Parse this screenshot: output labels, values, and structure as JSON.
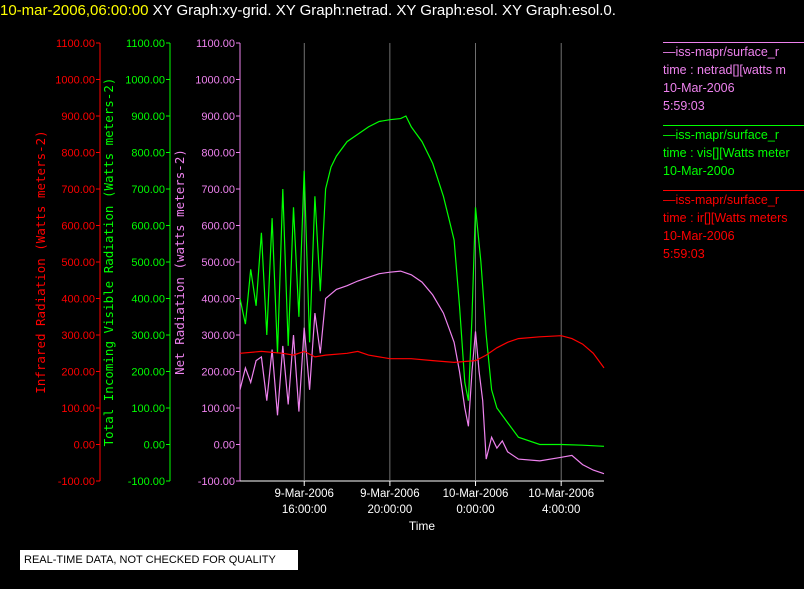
{
  "header": {
    "date_time": "10-mar-2006,06:00:00",
    "graphs": "XY Graph:xy-grid.  XY Graph:netrad.  XY Graph:esol.  XY Graph:esol.0."
  },
  "notice": "REAL-TIME DATA, NOT CHECKED FOR QUALITY",
  "colors": {
    "ir": "#ff0000",
    "vis": "#00ff00",
    "net": "#ee82ee",
    "axis_x": "#ffffff"
  },
  "legend": [
    {
      "line1": "—iss-mapr/surface_r",
      "line2": "time : netrad[][watts m",
      "line3": "10-Mar-2006",
      "line4": "5:59:03",
      "color": "#ee82ee"
    },
    {
      "line1": "—iss-mapr/surface_r",
      "line2": "time : vis[][Watts meter",
      "line3": "10-Mar-200o",
      "line4": "",
      "color": "#00ff00"
    },
    {
      "line1": "—iss-mapr/surface_r",
      "line2": "time : ir[][Watts meters",
      "line3": "10-Mar-2006",
      "line4": "5:59:03",
      "color": "#ff0000"
    }
  ],
  "chart_data": {
    "type": "line",
    "xlabel": "Time",
    "x_range": [
      "2006-03-09 13:00",
      "2006-03-10 06:00"
    ],
    "x_ticks": [
      {
        "date": "9-Mar-2006",
        "time": "16:00:00"
      },
      {
        "date": "9-Mar-2006",
        "time": "20:00:00"
      },
      {
        "date": "10-Mar-2006",
        "time": "0:00:00"
      },
      {
        "date": "10-Mar-2006",
        "time": "4:00:00"
      }
    ],
    "grid": "vertical lines at x ticks",
    "y_axes": [
      {
        "label": "Infrared Radiation (Watts meters-2)",
        "color": "#ff0000",
        "ylim": [
          -100,
          1100
        ],
        "ticks": [
          "1100.00",
          "1000.00",
          "900.00",
          "800.00",
          "700.00",
          "600.00",
          "500.00",
          "400.00",
          "300.00",
          "200.00",
          "100.00",
          "0.00",
          "-100.00"
        ]
      },
      {
        "label": "Total Incoming Visible Radiation (Watts meters-2)",
        "color": "#00ff00",
        "ylim": [
          -100,
          1100
        ],
        "ticks": [
          "1100.00",
          "1000.00",
          "900.00",
          "800.00",
          "700.00",
          "600.00",
          "500.00",
          "400.00",
          "300.00",
          "200.00",
          "100.00",
          "0.00",
          "-100.00"
        ]
      },
      {
        "label": "Net Radiation (watts meters-2)",
        "color": "#ee82ee",
        "ylim": [
          -100,
          1100
        ],
        "ticks": [
          "1100.00",
          "1000.00",
          "900.00",
          "800.00",
          "700.00",
          "600.00",
          "500.00",
          "400.00",
          "300.00",
          "200.00",
          "100.00",
          "0.00",
          "-100.00"
        ]
      }
    ],
    "series": [
      {
        "key": "vis",
        "color": "#00ff00",
        "points": [
          [
            "2006-03-09 13:00",
            400
          ],
          [
            "2006-03-09 13:15",
            330
          ],
          [
            "2006-03-09 13:30",
            480
          ],
          [
            "2006-03-09 13:45",
            380
          ],
          [
            "2006-03-09 14:00",
            580
          ],
          [
            "2006-03-09 14:15",
            300
          ],
          [
            "2006-03-09 14:30",
            620
          ],
          [
            "2006-03-09 14:45",
            250
          ],
          [
            "2006-03-09 15:00",
            700
          ],
          [
            "2006-03-09 15:15",
            270
          ],
          [
            "2006-03-09 15:30",
            650
          ],
          [
            "2006-03-09 15:45",
            350
          ],
          [
            "2006-03-09 16:00",
            750
          ],
          [
            "2006-03-09 16:15",
            280
          ],
          [
            "2006-03-09 16:30",
            680
          ],
          [
            "2006-03-09 16:45",
            420
          ],
          [
            "2006-03-09 17:00",
            700
          ],
          [
            "2006-03-09 17:15",
            760
          ],
          [
            "2006-03-09 17:30",
            790
          ],
          [
            "2006-03-09 18:00",
            830
          ],
          [
            "2006-03-09 18:30",
            850
          ],
          [
            "2006-03-09 19:00",
            870
          ],
          [
            "2006-03-09 19:30",
            885
          ],
          [
            "2006-03-09 20:00",
            890
          ],
          [
            "2006-03-09 20:30",
            893
          ],
          [
            "2006-03-09 20:45",
            900
          ],
          [
            "2006-03-09 21:00",
            870
          ],
          [
            "2006-03-09 21:30",
            830
          ],
          [
            "2006-03-09 22:00",
            770
          ],
          [
            "2006-03-09 22:30",
            680
          ],
          [
            "2006-03-09 22:45",
            620
          ],
          [
            "2006-03-09 23:00",
            560
          ],
          [
            "2006-03-09 23:15",
            380
          ],
          [
            "2006-03-09 23:30",
            170
          ],
          [
            "2006-03-09 23:40",
            120
          ],
          [
            "2006-03-09 23:50",
            350
          ],
          [
            "2006-03-10 00:00",
            650
          ],
          [
            "2006-03-10 00:15",
            500
          ],
          [
            "2006-03-10 00:30",
            300
          ],
          [
            "2006-03-10 00:45",
            150
          ],
          [
            "2006-03-10 01:00",
            100
          ],
          [
            "2006-03-10 01:30",
            60
          ],
          [
            "2006-03-10 02:00",
            20
          ],
          [
            "2006-03-10 03:00",
            0
          ],
          [
            "2006-03-10 04:00",
            0
          ],
          [
            "2006-03-10 05:00",
            -2
          ],
          [
            "2006-03-10 06:00",
            -5
          ]
        ]
      },
      {
        "key": "net",
        "color": "#ee82ee",
        "points": [
          [
            "2006-03-09 13:00",
            150
          ],
          [
            "2006-03-09 13:15",
            210
          ],
          [
            "2006-03-09 13:30",
            170
          ],
          [
            "2006-03-09 13:45",
            230
          ],
          [
            "2006-03-09 14:00",
            240
          ],
          [
            "2006-03-09 14:15",
            120
          ],
          [
            "2006-03-09 14:30",
            260
          ],
          [
            "2006-03-09 14:45",
            80
          ],
          [
            "2006-03-09 15:00",
            270
          ],
          [
            "2006-03-09 15:15",
            110
          ],
          [
            "2006-03-09 15:30",
            300
          ],
          [
            "2006-03-09 15:45",
            90
          ],
          [
            "2006-03-09 16:00",
            320
          ],
          [
            "2006-03-09 16:15",
            150
          ],
          [
            "2006-03-09 16:30",
            360
          ],
          [
            "2006-03-09 16:45",
            250
          ],
          [
            "2006-03-09 17:00",
            400
          ],
          [
            "2006-03-09 17:30",
            425
          ],
          [
            "2006-03-09 18:00",
            435
          ],
          [
            "2006-03-09 18:30",
            448
          ],
          [
            "2006-03-09 19:00",
            458
          ],
          [
            "2006-03-09 19:30",
            468
          ],
          [
            "2006-03-09 20:00",
            472
          ],
          [
            "2006-03-09 20:30",
            475
          ],
          [
            "2006-03-09 21:00",
            465
          ],
          [
            "2006-03-09 21:30",
            445
          ],
          [
            "2006-03-09 22:00",
            410
          ],
          [
            "2006-03-09 22:30",
            360
          ],
          [
            "2006-03-09 22:45",
            320
          ],
          [
            "2006-03-09 23:00",
            280
          ],
          [
            "2006-03-09 23:15",
            200
          ],
          [
            "2006-03-09 23:30",
            100
          ],
          [
            "2006-03-09 23:40",
            50
          ],
          [
            "2006-03-09 23:50",
            200
          ],
          [
            "2006-03-10 00:00",
            310
          ],
          [
            "2006-03-10 00:10",
            200
          ],
          [
            "2006-03-10 00:20",
            120
          ],
          [
            "2006-03-10 00:30",
            -40
          ],
          [
            "2006-03-10 00:45",
            20
          ],
          [
            "2006-03-10 01:00",
            -10
          ],
          [
            "2006-03-10 01:15",
            10
          ],
          [
            "2006-03-10 01:30",
            -20
          ],
          [
            "2006-03-10 02:00",
            -40
          ],
          [
            "2006-03-10 03:00",
            -45
          ],
          [
            "2006-03-10 04:00",
            -35
          ],
          [
            "2006-03-10 04:30",
            -30
          ],
          [
            "2006-03-10 05:00",
            -55
          ],
          [
            "2006-03-10 05:30",
            -70
          ],
          [
            "2006-03-10 06:00",
            -80
          ]
        ]
      },
      {
        "key": "ir",
        "color": "#ff0000",
        "points": [
          [
            "2006-03-09 13:00",
            250
          ],
          [
            "2006-03-09 14:00",
            255
          ],
          [
            "2006-03-09 15:00",
            250
          ],
          [
            "2006-03-09 15:30",
            245
          ],
          [
            "2006-03-09 16:00",
            255
          ],
          [
            "2006-03-09 16:30",
            240
          ],
          [
            "2006-03-09 17:00",
            245
          ],
          [
            "2006-03-09 18:00",
            250
          ],
          [
            "2006-03-09 18:30",
            255
          ],
          [
            "2006-03-09 19:00",
            245
          ],
          [
            "2006-03-09 20:00",
            235
          ],
          [
            "2006-03-09 21:00",
            235
          ],
          [
            "2006-03-09 22:00",
            230
          ],
          [
            "2006-03-09 23:00",
            225
          ],
          [
            "2006-03-10 00:00",
            230
          ],
          [
            "2006-03-10 00:30",
            245
          ],
          [
            "2006-03-10 01:00",
            265
          ],
          [
            "2006-03-10 01:30",
            280
          ],
          [
            "2006-03-10 02:00",
            290
          ],
          [
            "2006-03-10 03:00",
            295
          ],
          [
            "2006-03-10 04:00",
            298
          ],
          [
            "2006-03-10 04:30",
            290
          ],
          [
            "2006-03-10 05:00",
            275
          ],
          [
            "2006-03-10 05:30",
            250
          ],
          [
            "2006-03-10 06:00",
            210
          ]
        ]
      }
    ]
  }
}
